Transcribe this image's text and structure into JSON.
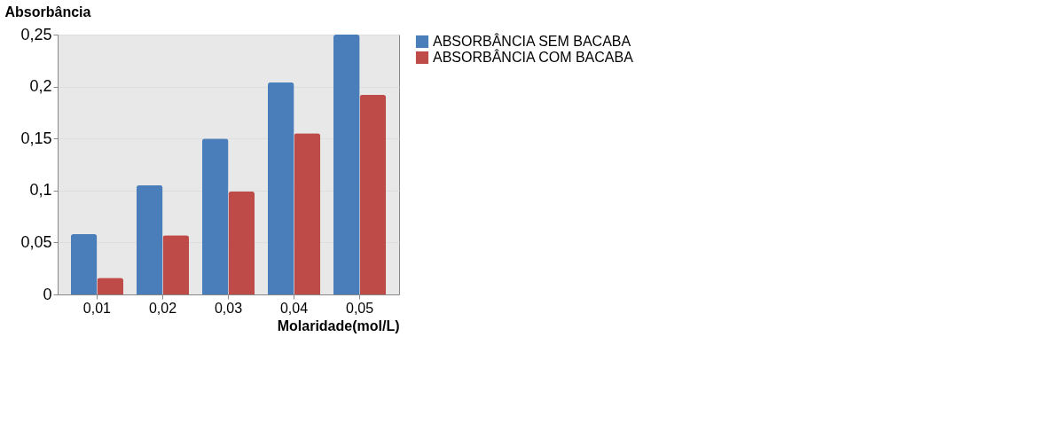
{
  "chart_data": {
    "type": "bar",
    "ylabel": "Absorbância",
    "xlabel": "Molaridade(mol/L)",
    "categories": [
      "0,01",
      "0,02",
      "0,03",
      "0,04",
      "0,05"
    ],
    "series": [
      {
        "name": "ABSORBÂNCIA SEM BACABA",
        "color": "#4a7ebb",
        "values": [
          0.058,
          0.105,
          0.15,
          0.204,
          0.25
        ]
      },
      {
        "name": "ABSORBÂNCIA COM BACABA",
        "color": "#be4b48",
        "values": [
          0.016,
          0.057,
          0.099,
          0.155,
          0.192
        ]
      }
    ],
    "ylim": [
      0,
      0.25
    ],
    "yticks": [
      {
        "value": 0,
        "label": "0"
      },
      {
        "value": 0.05,
        "label": "0,05"
      },
      {
        "value": 0.1,
        "label": "0,1"
      },
      {
        "value": 0.15,
        "label": "0,15"
      },
      {
        "value": 0.2,
        "label": "0,2"
      },
      {
        "value": 0.25,
        "label": "0,25"
      }
    ],
    "grid": "y",
    "legend": "right"
  }
}
